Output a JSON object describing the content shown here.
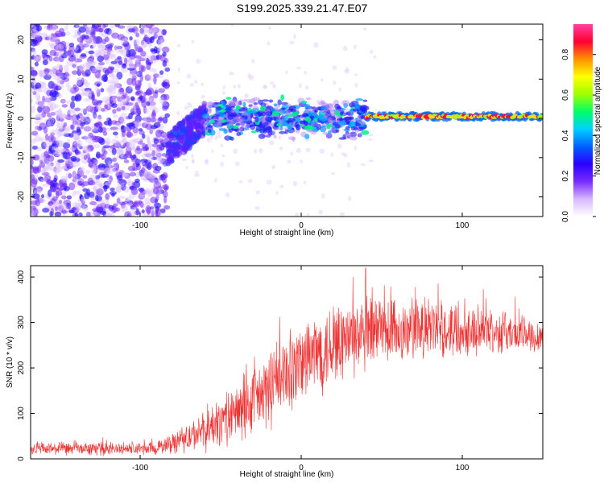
{
  "page_title": "S199.2025.339.21.47.E07",
  "chart_data": [
    {
      "type": "heatmap",
      "title": "S199.2025.339.21.47.E07",
      "xlabel": "Height of straight line (km)",
      "ylabel": "Frequency (Hz)",
      "xlim": [
        -168,
        150
      ],
      "ylim": [
        -25,
        24
      ],
      "x_ticks": [
        -100,
        0,
        100
      ],
      "y_ticks": [
        -20,
        -10,
        0,
        10,
        20
      ],
      "colorbar": {
        "label": "Normalized spectral amplitude",
        "range": [
          0,
          0.95
        ],
        "ticks": [
          0,
          0.2,
          0.4,
          0.6,
          0.8
        ],
        "colors": [
          "#ffffff",
          "#d6b8ff",
          "#7a2cff",
          "#2a00ff",
          "#0060ff",
          "#00d0ff",
          "#00ff66",
          "#a0ff00",
          "#ffff00",
          "#ff9000",
          "#ff0030",
          "#ff40a0"
        ]
      },
      "features": [
        {
          "name": "broadband noise",
          "x_range": [
            -168,
            -83
          ],
          "freq_range": [
            -25,
            24
          ],
          "amplitude": 0.25
        },
        {
          "name": "rising tail",
          "x_range": [
            -83,
            -60
          ],
          "freq_range": [
            -10,
            3
          ],
          "amplitude": 0.35
        },
        {
          "name": "signal band",
          "x_range": [
            -60,
            40
          ],
          "freq_center": 0,
          "freq_halfwidth": 4,
          "amplitude": 0.45
        },
        {
          "name": "narrow tone",
          "x_range": [
            40,
            150
          ],
          "freq_center": 0.5,
          "freq_halfwidth": 1,
          "amplitude": 0.85
        }
      ]
    },
    {
      "type": "line",
      "xlabel": "Height of straight line (km)",
      "ylabel": "SNR (10 * v/v)",
      "xlim": [
        -168,
        150
      ],
      "ylim": [
        0,
        425
      ],
      "x_ticks": [
        -100,
        0,
        100
      ],
      "y_ticks": [
        0,
        100,
        200,
        300,
        400
      ],
      "color": "#ee3333",
      "series": [
        {
          "name": "SNR",
          "envelope": {
            "x": [
              -168,
              -90,
              -80,
              -60,
              -40,
              -20,
              0,
              20,
              40,
              60,
              80,
              100,
              120,
              150
            ],
            "mean": [
              22,
              22,
              35,
              60,
              100,
              150,
              210,
              255,
              270,
              280,
              285,
              285,
              280,
              270
            ],
            "spread": [
              15,
              15,
              25,
              45,
              70,
              90,
              100,
              100,
              90,
              80,
              70,
              60,
              50,
              40
            ]
          },
          "peak": {
            "x": 40,
            "y": 420
          }
        }
      ]
    }
  ]
}
